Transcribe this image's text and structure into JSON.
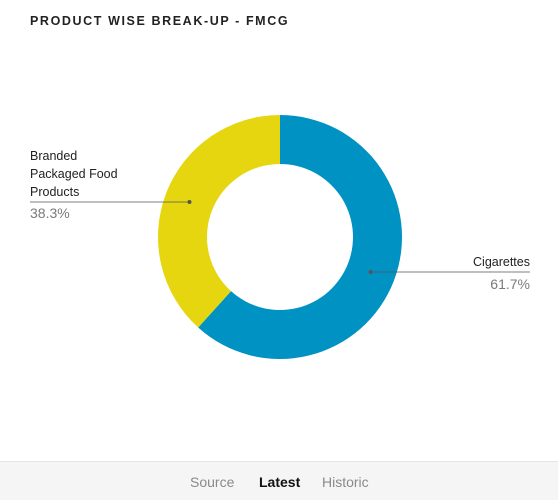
{
  "title": "PRODUCT WISE BREAK-UP - FMCG",
  "chart_data": {
    "type": "pie",
    "variant": "donut",
    "categories": [
      "Cigarettes",
      "Branded Packaged Food Products"
    ],
    "values": [
      61.7,
      38.3
    ],
    "value_labels": [
      "61.7%",
      "38.3%"
    ],
    "label_lines": [
      [
        "Cigarettes"
      ],
      [
        "Branded",
        "Packaged Food",
        "Products"
      ]
    ],
    "colors": [
      "#0092c2",
      "#e5d610"
    ],
    "start_angle_deg": 0,
    "direction": "clockwise",
    "unit": "%"
  },
  "footer": {
    "tabs": [
      {
        "label": "Source",
        "active": false
      },
      {
        "label": "Latest",
        "active": true
      },
      {
        "label": "Historic",
        "active": false
      }
    ]
  }
}
